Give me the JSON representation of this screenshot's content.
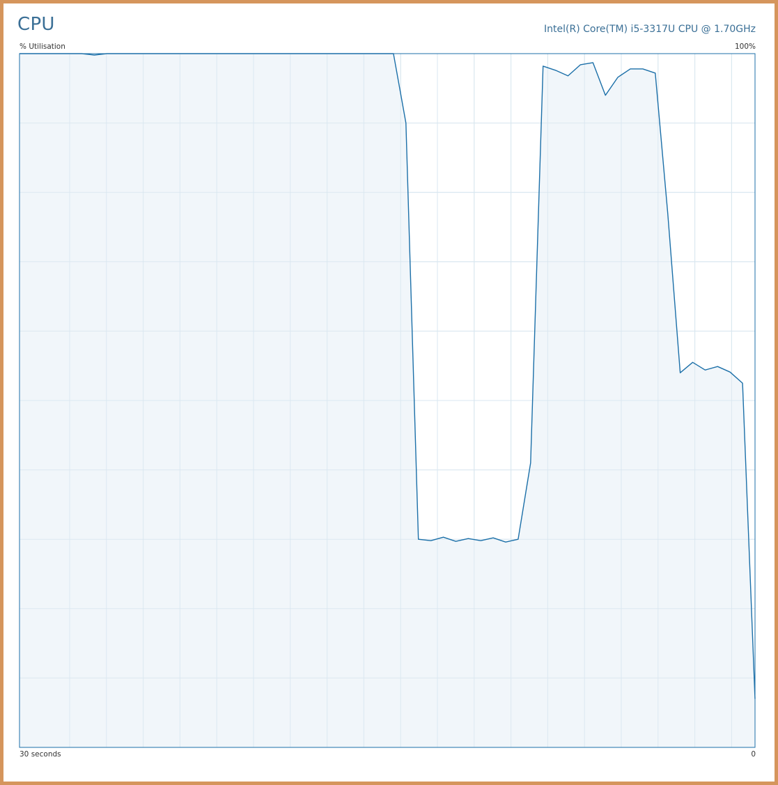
{
  "header": {
    "title": "CPU",
    "processor_name": "Intel(R) Core(TM) i5-3317U CPU @ 1.70GHz"
  },
  "colors": {
    "frame": "#d5955c",
    "line": "#1b6fa8",
    "fill": "#f1f6fa",
    "grid": "#d9e7f0",
    "border": "#1b6fa8",
    "text": "#3a6f96"
  },
  "chart_data": {
    "type": "area",
    "ylabel": "% Utilisation",
    "ymax_label": "100%",
    "xlabel_left": "30 seconds",
    "xlabel_right": "0",
    "ylim": [
      0,
      100
    ],
    "grid": true,
    "series": [
      {
        "values": [
          100,
          100,
          100,
          100,
          100,
          100,
          99.8,
          100,
          100,
          100,
          100,
          100,
          100,
          100,
          100,
          100,
          100,
          100,
          100,
          100,
          100,
          100,
          100,
          100,
          100,
          100,
          100,
          100,
          100,
          100,
          100,
          90,
          30,
          29.8,
          30.3,
          29.7,
          30.1,
          29.8,
          30.2,
          29.6,
          30,
          41,
          98.2,
          97.6,
          96.8,
          98.4,
          98.7,
          94,
          96.6,
          97.8,
          97.8,
          97.2,
          77,
          54,
          55.5,
          54.4,
          54.9,
          54.1,
          52.5,
          7
        ]
      }
    ]
  }
}
